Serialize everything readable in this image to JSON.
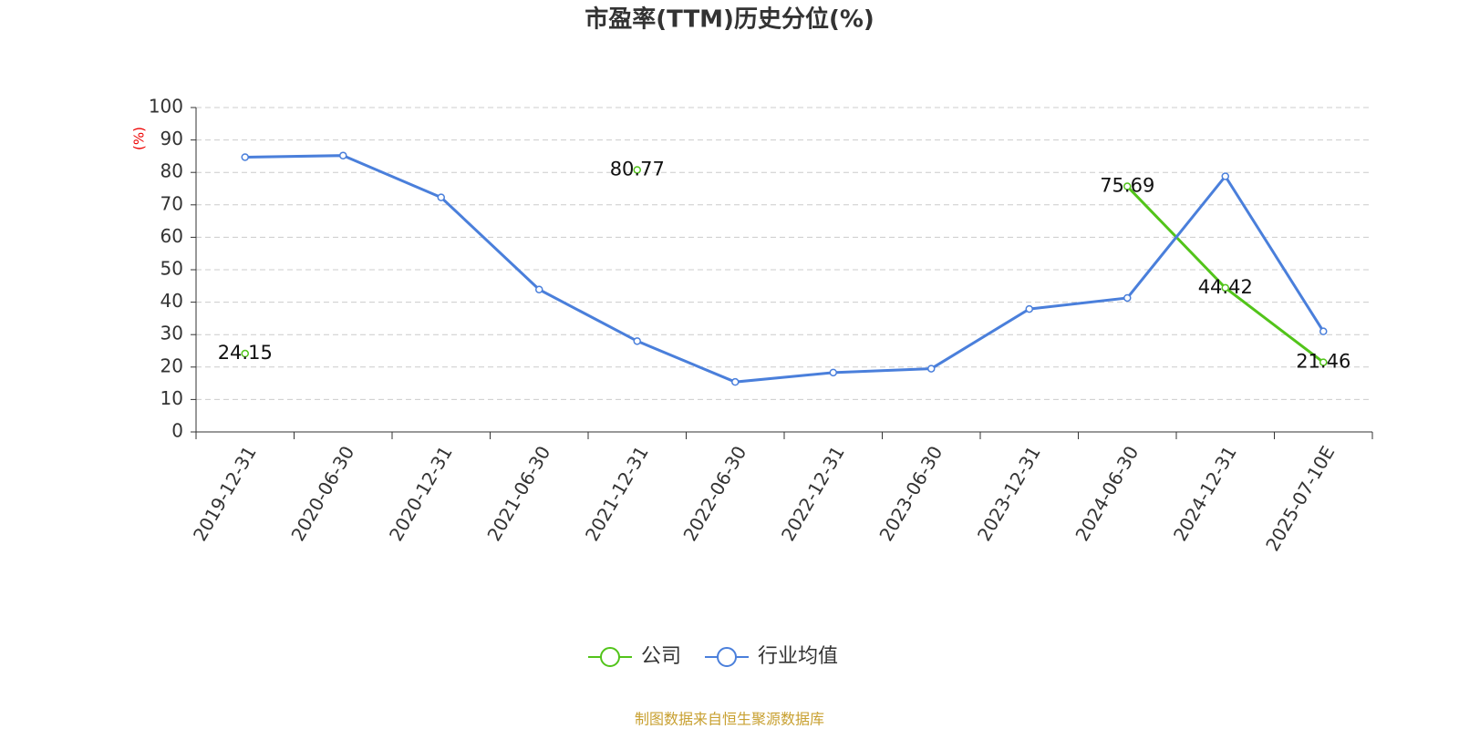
{
  "chart_data": {
    "type": "line",
    "title": "市盈率(TTM)历史分位(%)",
    "y_axis_label": "(%)",
    "source": "制图数据来自恒生聚源数据库",
    "categories": [
      "2019-12-31",
      "2020-06-30",
      "2020-12-31",
      "2021-06-30",
      "2021-12-31",
      "2022-06-30",
      "2022-12-31",
      "2023-06-30",
      "2023-12-31",
      "2024-06-30",
      "2024-12-31",
      "2025-07-10E"
    ],
    "series": [
      {
        "name": "公司",
        "color": "#52c41a",
        "values": [
          24.15,
          null,
          null,
          null,
          80.77,
          null,
          null,
          null,
          null,
          75.69,
          44.42,
          21.46
        ],
        "show_labels": true
      },
      {
        "name": "行业均值",
        "color": "#4a7fdb",
        "values": [
          84.7,
          85.2,
          72.3,
          43.9,
          28.0,
          15.4,
          18.3,
          19.5,
          37.9,
          41.3,
          78.8,
          31.0
        ],
        "show_labels": false
      }
    ],
    "ylim": [
      0,
      100
    ],
    "yticks": [
      0,
      10,
      20,
      30,
      40,
      50,
      60,
      70,
      80,
      90,
      100
    ],
    "grid": true,
    "legend": "bottom"
  }
}
